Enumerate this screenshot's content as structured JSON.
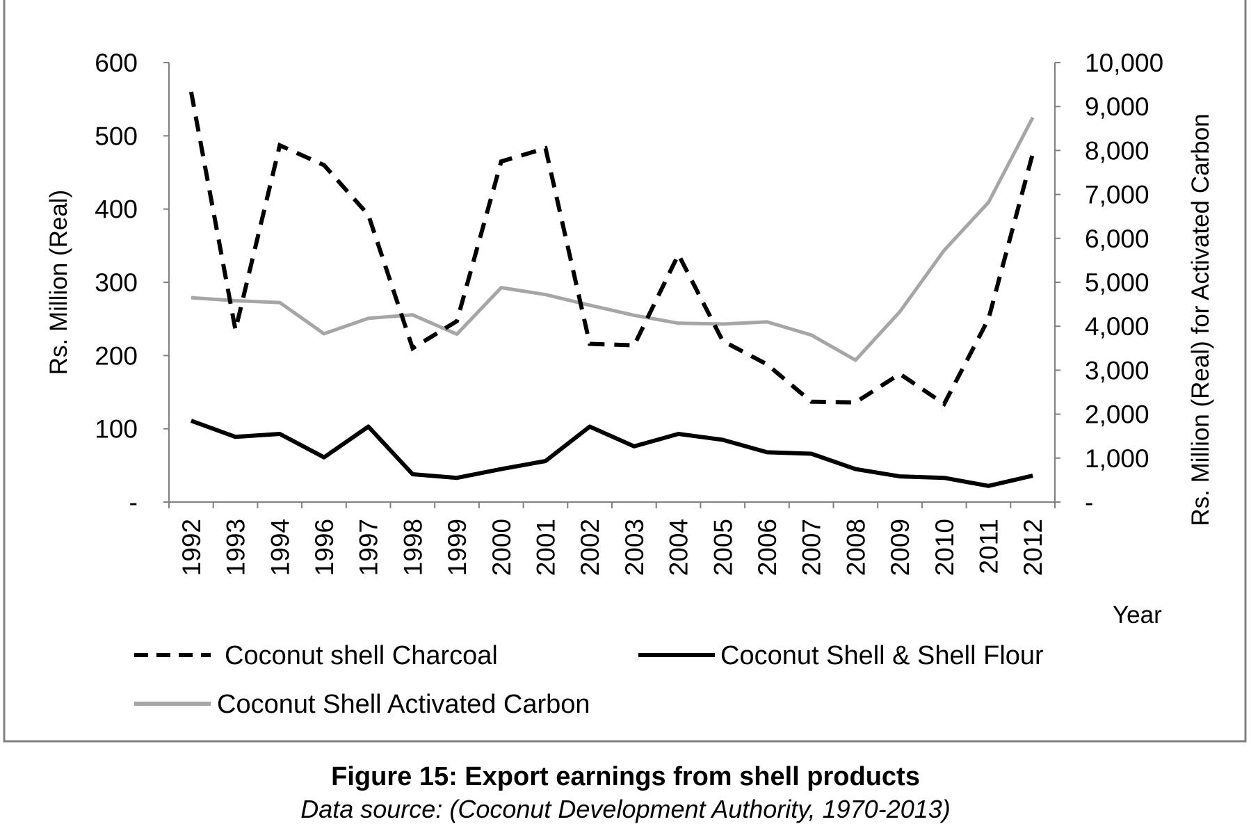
{
  "chart_data": {
    "type": "line",
    "categories": [
      "1992",
      "1993",
      "1994",
      "1996",
      "1997",
      "1998",
      "1999",
      "2000",
      "2001",
      "2002",
      "2003",
      "2004",
      "2005",
      "2006",
      "2007",
      "2008",
      "2009",
      "2010",
      "2011",
      "2012"
    ],
    "series": [
      {
        "name": "Coconut shell Charcoal",
        "axis": "left",
        "style": "dashed",
        "color": "#000000",
        "values": [
          560,
          235,
          487,
          460,
          392,
          210,
          247,
          465,
          483,
          216,
          214,
          338,
          220,
          188,
          137,
          136,
          175,
          134,
          250,
          476
        ]
      },
      {
        "name": "Coconut Shell & Shell Flour",
        "axis": "left",
        "style": "solid",
        "color": "#000000",
        "values": [
          111,
          89,
          93,
          61,
          103,
          38,
          33,
          45,
          56,
          103,
          76,
          93,
          85,
          68,
          66,
          45,
          35,
          33,
          22,
          36
        ]
      },
      {
        "name": "Coconut Shell Activated Carbon",
        "axis": "right",
        "style": "solid",
        "color": "#a6a6a6",
        "values": [
          4650,
          4580,
          4540,
          3830,
          4180,
          4260,
          3820,
          4880,
          4720,
          4480,
          4250,
          4070,
          4050,
          4100,
          3800,
          3230,
          4330,
          5730,
          6820,
          8750
        ]
      }
    ],
    "ylabel": "Rs. Million (Real)",
    "y2label": "Rs. Million (Real) for Activated Carbon",
    "xlabel": "Year",
    "ylim": [
      0,
      600
    ],
    "y2lim": [
      0,
      10000
    ],
    "yticks": [
      "-",
      "100",
      "200",
      "300",
      "400",
      "500",
      "600"
    ],
    "y2ticks": [
      "-",
      "1,000",
      "2,000",
      "3,000",
      "4,000",
      "5,000",
      "6,000",
      "7,000",
      "8,000",
      "9,000",
      "10,000"
    ],
    "grid": false,
    "legend_position": "bottom"
  },
  "caption": {
    "title": "Figure 15: Export earnings from shell products",
    "source": "Data source: (Coconut Development Authority, 1970-2013)"
  }
}
